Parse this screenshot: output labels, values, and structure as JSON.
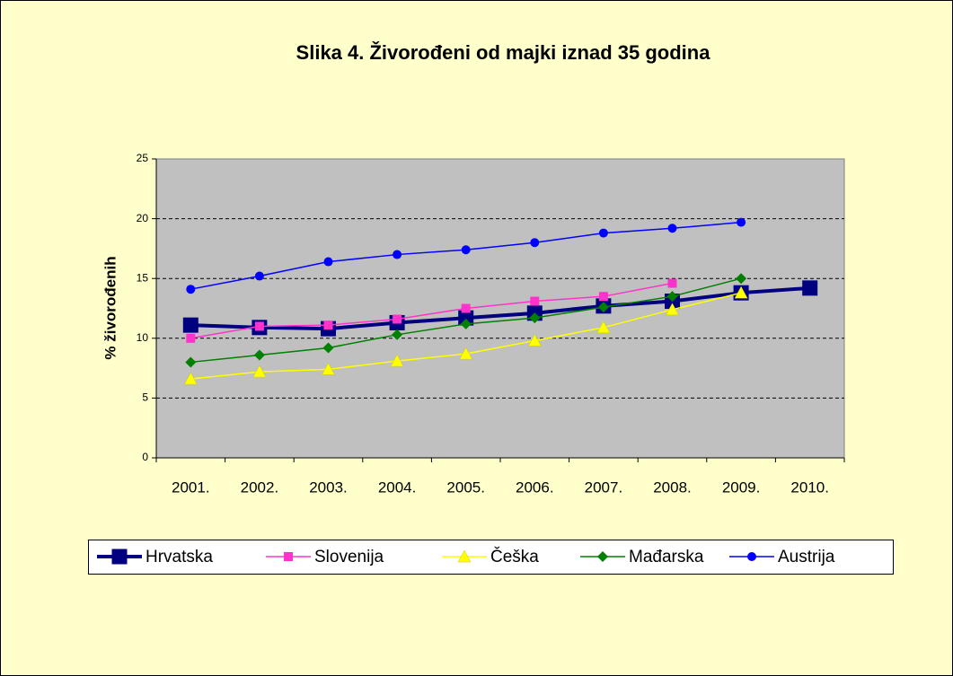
{
  "chart_data": {
    "type": "line",
    "title": "Slika 4. Živorođeni od majki iznad 35 godina",
    "y_label": "% živorođenih",
    "categories": [
      "2001.",
      "2002.",
      "2003.",
      "2004.",
      "2005.",
      "2006.",
      "2007.",
      "2008.",
      "2009.",
      "2010."
    ],
    "ylim": [
      0,
      25
    ],
    "yticks": [
      0,
      5,
      10,
      15,
      20,
      25
    ],
    "grid": true,
    "legend": "bottom",
    "series": [
      {
        "name": "Hrvatska",
        "color": "#000080",
        "marker": "square-large",
        "values": [
          11.1,
          10.9,
          10.8,
          11.3,
          11.7,
          12.1,
          12.7,
          13.1,
          13.8,
          14.2
        ]
      },
      {
        "name": "Slovenija",
        "color": "#ff33cc",
        "marker": "square",
        "values": [
          10.0,
          11.0,
          11.1,
          11.6,
          12.5,
          13.1,
          13.5,
          14.6,
          null,
          null
        ]
      },
      {
        "name": "Češka",
        "color": "#ffff00",
        "marker": "triangle",
        "values": [
          6.6,
          7.2,
          7.4,
          8.1,
          8.7,
          9.8,
          10.9,
          12.4,
          13.8,
          null
        ]
      },
      {
        "name": "Mađarska",
        "color": "#008000",
        "marker": "diamond",
        "values": [
          8.0,
          8.6,
          9.2,
          10.3,
          11.2,
          11.7,
          12.6,
          13.5,
          15.0,
          null
        ]
      },
      {
        "name": "Austrija",
        "color": "#0000ff",
        "marker": "circle",
        "values": [
          14.1,
          15.2,
          16.4,
          17.0,
          17.4,
          18.0,
          18.8,
          19.2,
          19.7,
          null
        ]
      }
    ]
  }
}
